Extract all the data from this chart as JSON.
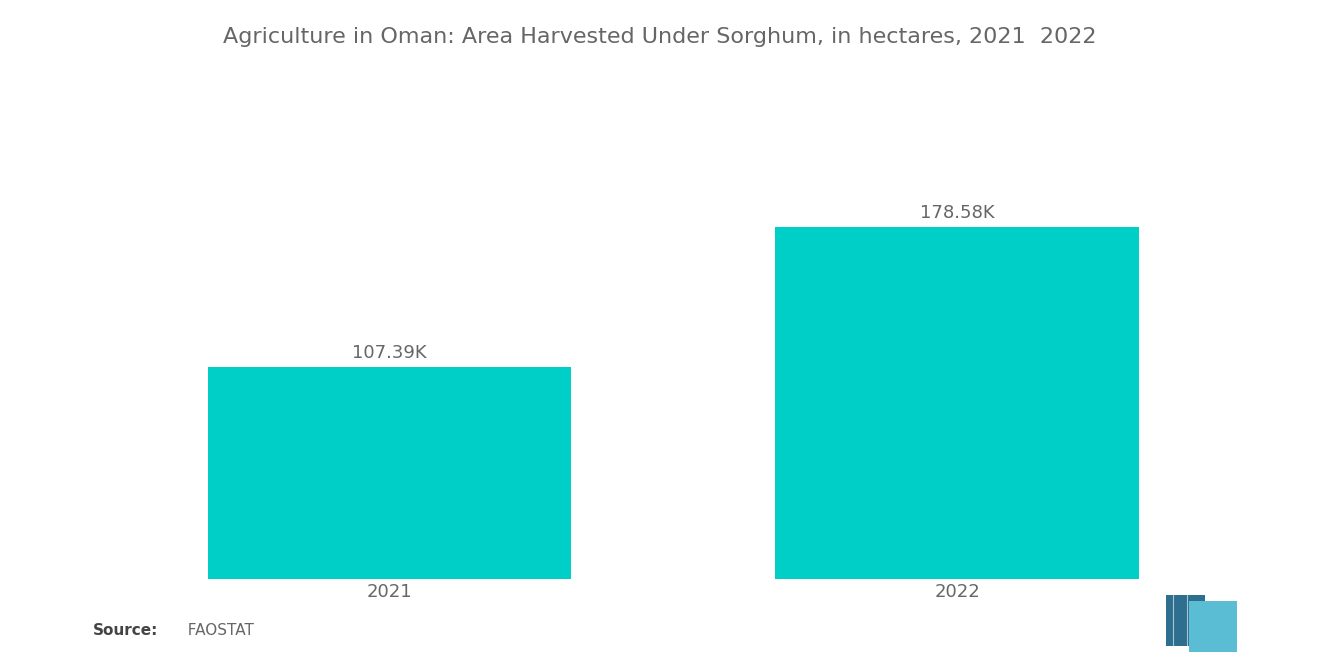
{
  "title": "Agriculture in Oman: Area Harvested Under Sorghum, in hectares, 2021  2022",
  "categories": [
    "2021",
    "2022"
  ],
  "values": [
    107390,
    178580
  ],
  "labels": [
    "107.39K",
    "178.58K"
  ],
  "bar_color": "#00CFC8",
  "background_color": "#ffffff",
  "source_bold": "Source:",
  "source_plain": "  FAOSTAT",
  "title_fontsize": 16,
  "label_fontsize": 13,
  "tick_fontsize": 13,
  "source_fontsize": 11,
  "bar_width": 0.32,
  "ylim": [
    0,
    230000
  ],
  "text_color": "#666666"
}
